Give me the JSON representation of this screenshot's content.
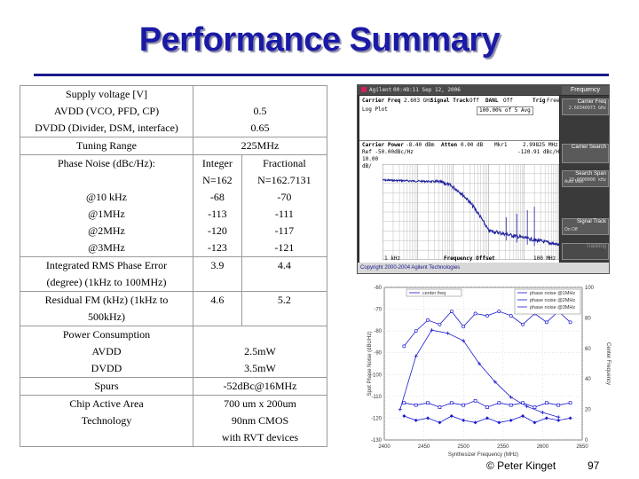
{
  "title": "Performance Summary",
  "table": [
    {
      "label": [
        "Supply voltage [V]",
        "AVDD (VCO, PFD, CP)",
        "DVDD (Divider, DSM, interface)"
      ],
      "value": [
        "",
        "0.5",
        "0.65"
      ]
    },
    {
      "label": [
        "Tuning Range"
      ],
      "value": [
        "225MHz"
      ]
    },
    {
      "label": [
        "Phase Noise (dBc/Hz):",
        "",
        "@10 kHz",
        "@1MHz",
        "@2MHz",
        "@3MHz"
      ],
      "integer": [
        "Integer",
        "N=162",
        "-68",
        "-113",
        "-120",
        "-123"
      ],
      "fractional": [
        "Fractional",
        "N=162.7131",
        "-70",
        "-111",
        "-117",
        "-121"
      ]
    },
    {
      "label": [
        "Integrated RMS Phase Error",
        "(degree) (1kHz to 100MHz)"
      ],
      "integer": [
        "3.9"
      ],
      "fractional": [
        "4.4"
      ]
    },
    {
      "label": [
        "Residual FM (kHz) (1kHz to",
        "500kHz)"
      ],
      "integer": [
        "4.6"
      ],
      "fractional": [
        "5.2"
      ]
    },
    {
      "label": [
        "Power Consumption",
        "AVDD",
        "DVDD"
      ],
      "value": [
        "",
        "2.5mW",
        "3.5mW"
      ]
    },
    {
      "label": [
        "Spurs"
      ],
      "value": [
        "-52dBc@16MHz"
      ]
    },
    {
      "label": [
        "Chip Active Area",
        "Technology"
      ],
      "value": [
        "700 um x 200um",
        "90nm CMOS",
        "with RVT devices"
      ]
    }
  ],
  "analyzer": {
    "brand": "Agilent",
    "time": "00:48:11  Sep 12, 2006",
    "panel_title": "Frequency",
    "carrier_freq": "Carrier Freq",
    "carrier_val": "2.603 GHz",
    "signal_track": "Signal Track",
    "signal_track_state": "Off",
    "danl": "DANL",
    "danl_state": "Off",
    "trig": "Trig",
    "trig_state": "Free",
    "log_plot": "Log Plot",
    "avg": "100.00% of 5 Avg",
    "carrier_power": "Carrier Power",
    "carrier_power_val": "-8.40 dBm",
    "atten": "Atten",
    "atten_val": "0.00 dB",
    "mkr": "Mkr1",
    "mkr_freq": "2.99825 MHz",
    "mkr_val": "-120.91 dBc/Hz",
    "ref": "Ref -50.00dBc/Hz",
    "scale": "10.00",
    "unit": "dB/",
    "x_start": "1 kHz",
    "x_label": "Frequency Offset",
    "x_stop": "100 MHz",
    "copyright": "Copyright 2000-2004 Agilent Technologies",
    "softkeys": [
      {
        "label": "Carrier Freq",
        "sub": "2.60340973 GHz",
        "left": ""
      },
      {
        "label": "Carrier Search",
        "sub": "",
        "left": ""
      },
      {
        "label": "Search Span",
        "sub": "10.0000000 kHz",
        "left": "Auto     Man"
      },
      {
        "label": "Signal Track",
        "sub": "",
        "left": "On        Off"
      },
      {
        "label": "Tracking",
        "sub": "",
        "left": ""
      }
    ]
  },
  "chart_data": {
    "type": "line",
    "xlabel": "Synthesizer Frequency (MHz)",
    "ylabel_left": "Spot Phase Noise (dBc/Hz)",
    "ylabel_right": "Center Frequency",
    "xlim": [
      2400,
      2650
    ],
    "ylim_left": [
      -130,
      -60
    ],
    "ylim_right": [
      0,
      100
    ],
    "x_ticks": [
      "2400",
      "2450",
      "2500",
      "2550",
      "2600",
      "2650"
    ],
    "y_ticks": [
      "-60",
      "-70",
      "-80",
      "-90",
      "-100",
      "-110",
      "-120",
      "-130"
    ],
    "y_ticks_right": [
      "100",
      "80",
      "60",
      "40",
      "20",
      "0"
    ],
    "legend": [
      "center freq",
      "phase noise @1MHz",
      "phase noise @2MHz",
      "phase noise @3MHz"
    ],
    "colors": {
      "primary": "#1a1ad0",
      "grid": "#c8c8c8"
    },
    "series": [
      {
        "name": "center freq",
        "axis": "right",
        "x": [
          2420,
          2440,
          2460,
          2480,
          2500,
          2520,
          2540,
          2560,
          2580,
          2600,
          2620
        ],
        "y": [
          20,
          55,
          72,
          70,
          65,
          50,
          38,
          28,
          22,
          18,
          15
        ]
      },
      {
        "name": "phase noise @1MHz",
        "axis": "left",
        "x": [
          2425,
          2440,
          2455,
          2470,
          2485,
          2500,
          2515,
          2530,
          2545,
          2560,
          2575,
          2590,
          2605,
          2620,
          2635
        ],
        "y": [
          -87,
          -80,
          -75,
          -77,
          -71,
          -78,
          -72,
          -73,
          -71,
          -73,
          -77,
          -72,
          -76,
          -71,
          -76
        ]
      },
      {
        "name": "phase noise @2MHz",
        "axis": "left",
        "x": [
          2425,
          2440,
          2455,
          2470,
          2485,
          2500,
          2515,
          2530,
          2545,
          2560,
          2575,
          2590,
          2605,
          2620,
          2635
        ],
        "y": [
          -113,
          -114,
          -113,
          -115,
          -113,
          -114,
          -112,
          -115,
          -113,
          -114,
          -113,
          -115,
          -113,
          -114,
          -113
        ]
      },
      {
        "name": "phase noise @3MHz",
        "axis": "left",
        "x": [
          2425,
          2440,
          2455,
          2470,
          2485,
          2500,
          2515,
          2530,
          2545,
          2560,
          2575,
          2590,
          2605,
          2620,
          2635
        ],
        "y": [
          -119,
          -121,
          -120,
          -122,
          -119,
          -121,
          -122,
          -120,
          -122,
          -121,
          -119,
          -122,
          -120,
          -121,
          -120
        ]
      }
    ]
  },
  "footer": {
    "author": "© Peter Kinget",
    "page": "97"
  }
}
